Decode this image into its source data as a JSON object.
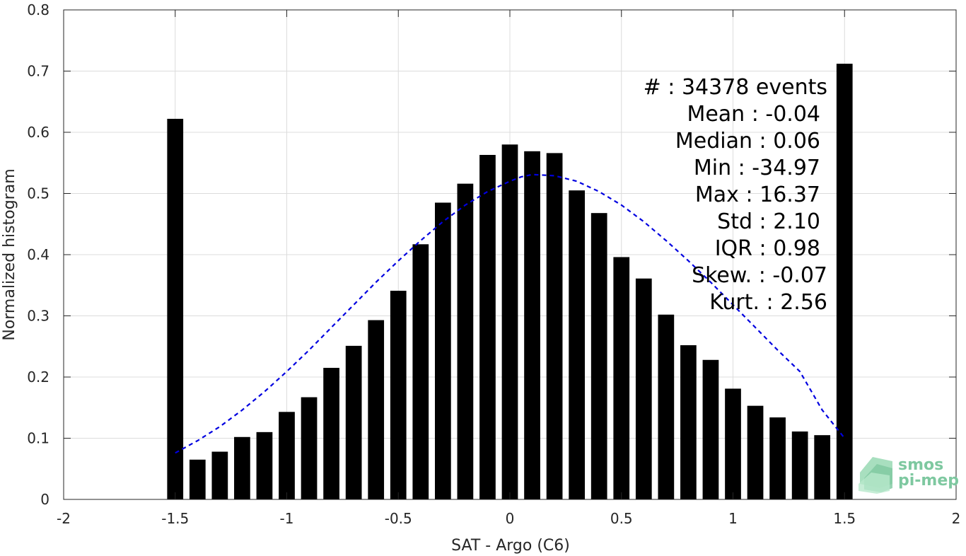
{
  "chart_data": {
    "type": "bar",
    "xlabel": "SAT - Argo (C6)",
    "ylabel": "Normalized histogram",
    "xlim": [
      -2,
      2
    ],
    "ylim": [
      0,
      0.8
    ],
    "xticks": [
      -2,
      -1.5,
      -1,
      -0.5,
      0,
      0.5,
      1,
      1.5,
      2
    ],
    "xtick_labels": [
      "-2",
      "-1.5",
      "-1",
      "-0.5",
      "0",
      "0.5",
      "1",
      "1.5",
      "2"
    ],
    "yticks": [
      0,
      0.1,
      0.2,
      0.3,
      0.4,
      0.5,
      0.6,
      0.7,
      0.8
    ],
    "ytick_labels": [
      "0",
      "0.1",
      "0.2",
      "0.3",
      "0.4",
      "0.5",
      "0.6",
      "0.7",
      "0.8"
    ],
    "grid": true,
    "bar_color": "#000000",
    "curve_color": "#0000e0",
    "x": [
      -1.5,
      -1.4,
      -1.3,
      -1.2,
      -1.1,
      -1.0,
      -0.9,
      -0.8,
      -0.7,
      -0.6,
      -0.5,
      -0.4,
      -0.3,
      -0.2,
      -0.1,
      0.0,
      0.1,
      0.2,
      0.3,
      0.4,
      0.5,
      0.6,
      0.7,
      0.8,
      0.9,
      1.0,
      1.1,
      1.2,
      1.3,
      1.4,
      1.5
    ],
    "values": [
      0.622,
      0.065,
      0.078,
      0.102,
      0.11,
      0.143,
      0.167,
      0.215,
      0.251,
      0.293,
      0.341,
      0.417,
      0.485,
      0.516,
      0.563,
      0.58,
      0.569,
      0.566,
      0.505,
      0.468,
      0.396,
      0.361,
      0.302,
      0.252,
      0.228,
      0.181,
      0.153,
      0.134,
      0.111,
      0.105,
      0.712
    ],
    "fit_curve": {
      "style": "dashed",
      "x": [
        -1.5,
        -1.4,
        -1.3,
        -1.2,
        -1.1,
        -1.0,
        -0.9,
        -0.8,
        -0.7,
        -0.6,
        -0.5,
        -0.4,
        -0.3,
        -0.2,
        -0.1,
        0.0,
        0.05,
        0.1,
        0.2,
        0.3,
        0.4,
        0.5,
        0.6,
        0.7,
        0.8,
        0.9,
        1.0,
        1.1,
        1.2,
        1.3,
        1.4,
        1.5
      ],
      "y": [
        0.076,
        0.096,
        0.119,
        0.146,
        0.176,
        0.209,
        0.244,
        0.281,
        0.318,
        0.355,
        0.39,
        0.423,
        0.454,
        0.481,
        0.503,
        0.52,
        0.527,
        0.531,
        0.529,
        0.52,
        0.503,
        0.481,
        0.454,
        0.423,
        0.39,
        0.355,
        0.318,
        0.281,
        0.244,
        0.209,
        0.146,
        0.1
      ]
    },
    "stats_lines": [
      "#   : 34378 events",
      "Mean : -0.04",
      "Median : 0.06",
      "Min : -34.97",
      "Max : 16.37",
      "Std : 2.10",
      "IQR : 0.98",
      "Skew. : -0.07",
      "Kurt. : 2.56"
    ]
  },
  "logo": {
    "line1": "smos",
    "line2": "pi-mep"
  }
}
